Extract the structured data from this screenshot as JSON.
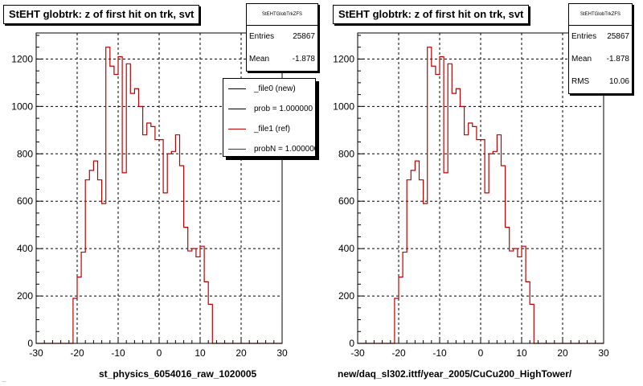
{
  "chart_data": [
    {
      "type": "histogram",
      "title": "StEHT globtrk: z of first hit on trk, svt",
      "xlabel": "st_physics_6054016_raw_1020005",
      "xlim": [
        -30,
        30
      ],
      "ylim": [
        0,
        1310
      ],
      "xticks": [
        -30,
        -20,
        -10,
        0,
        10,
        20,
        30
      ],
      "yticks": [
        0,
        200,
        400,
        600,
        800,
        1000,
        1200
      ],
      "grid": true,
      "bin_width": 1,
      "bin_start": -30,
      "values": [
        0,
        0,
        0,
        0,
        0,
        0,
        0,
        0,
        0,
        190,
        280,
        385,
        690,
        730,
        770,
        690,
        590,
        1250,
        1170,
        1135,
        1210,
        720,
        1180,
        1055,
        1075,
        1000,
        880,
        930,
        915,
        860,
        860,
        635,
        800,
        810,
        880,
        750,
        490,
        390,
        400,
        365,
        410,
        260,
        165,
        0,
        0,
        0,
        0,
        0,
        0,
        0,
        0,
        0,
        0,
        0,
        0,
        0,
        0,
        0,
        0,
        0
      ],
      "series": [
        {
          "name": "_file0 (new)",
          "color": "#000000"
        },
        {
          "name": "_file1 (ref)",
          "color": "#c00000"
        }
      ],
      "stats": {
        "header": "StEHTGlobTrkZFS",
        "entries_label": "Entries",
        "entries": "25867",
        "mean_label": "Mean",
        "mean": "-1.878"
      },
      "legend": [
        {
          "label": "_file0 (new)",
          "color": "#000000"
        },
        {
          "label": "prob = 1.000000",
          "color": "#000000"
        },
        {
          "label": "_file1 (ref)",
          "color": "#c00000"
        },
        {
          "label": "probN = 1.000000",
          "color": "#c00000"
        }
      ]
    },
    {
      "type": "histogram",
      "title": "StEHT globtrk: z of first hit on trk, svt",
      "xlabel": "new/daq_sl302.ittf/year_2005/CuCu200_HighTower/",
      "xlim": [
        -30,
        30
      ],
      "ylim": [
        0,
        1310
      ],
      "xticks": [
        -30,
        -20,
        -10,
        0,
        10,
        20,
        30
      ],
      "yticks": [
        0,
        200,
        400,
        600,
        800,
        1000,
        1200
      ],
      "grid": true,
      "bin_width": 1,
      "bin_start": -30,
      "values": [
        0,
        0,
        0,
        0,
        0,
        0,
        0,
        0,
        0,
        190,
        280,
        385,
        690,
        730,
        770,
        690,
        590,
        1250,
        1170,
        1135,
        1210,
        720,
        1180,
        1055,
        1075,
        1000,
        880,
        930,
        915,
        860,
        860,
        635,
        800,
        810,
        880,
        750,
        490,
        390,
        400,
        365,
        410,
        260,
        165,
        0,
        0,
        0,
        0,
        0,
        0,
        0,
        0,
        0,
        0,
        0,
        0,
        0,
        0,
        0,
        0,
        0
      ],
      "series": [
        {
          "color": "#c00000"
        }
      ],
      "stats": {
        "header": "StEHTGlobTrkZFS",
        "entries_label": "Entries",
        "entries": "25867",
        "mean_label": "Mean",
        "mean": "-1.878",
        "rms_label": "RMS",
        "rms": "10.06"
      }
    }
  ],
  "footer": "..."
}
